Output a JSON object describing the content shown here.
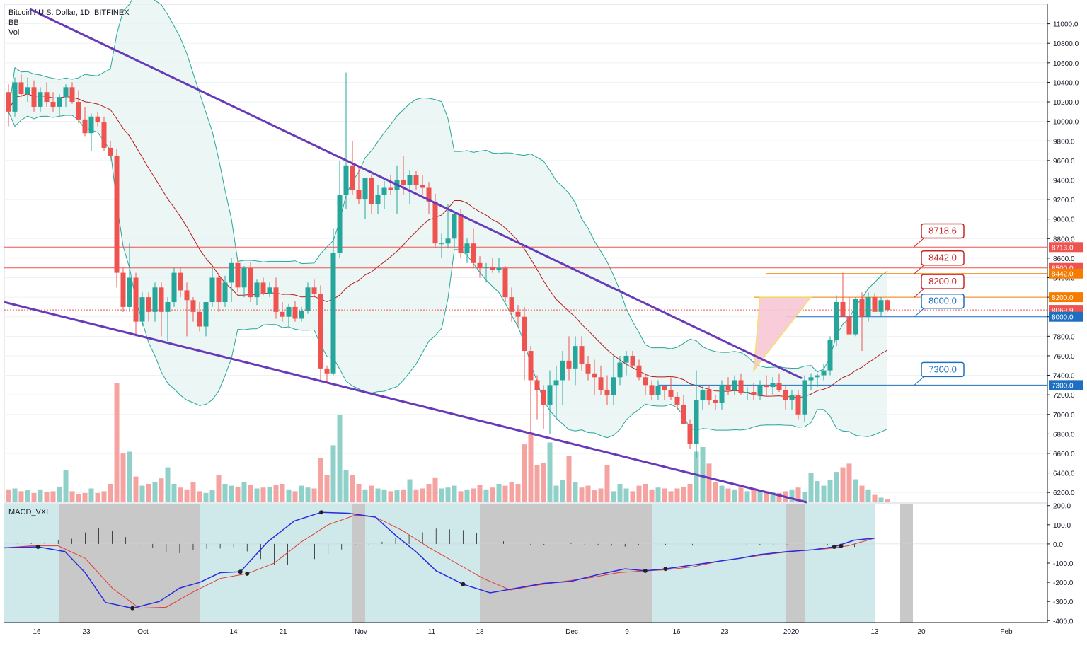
{
  "header": {
    "symbol": "Bitcoin / U.S. Dollar, 1D, BITFINEX",
    "indicator1": "BB",
    "indicator2": "Vol"
  },
  "macd_label": "MACD_VXI",
  "colors": {
    "up": "#26a69a",
    "down": "#ef5350",
    "wedge": "#673ab7",
    "bb": "#2196f3",
    "basis": "#b71c1c",
    "red_line": "#ef5350",
    "orange_line": "#f57c00",
    "blue_line": "#1e6fbf"
  },
  "price_axis": {
    "ticks": [
      "11000.0",
      "10800.0",
      "10600.0",
      "10400.0",
      "10200.0",
      "10000.0",
      "9800.0",
      "9600.0",
      "9400.0",
      "9200.0",
      "9000.0",
      "8800.0",
      "8600.0",
      "8400.0",
      "8200.0",
      "8000.0",
      "7800.0",
      "7600.0",
      "7400.0",
      "7200.0",
      "7000.0",
      "6800.0",
      "6600.0",
      "6400.0",
      "6200.0"
    ],
    "badges": [
      {
        "label": "8713.0",
        "color": "#ef5350",
        "value": 8713
      },
      {
        "label": "8500.0",
        "color": "#ef5350",
        "value": 8500
      },
      {
        "label": "8442.0",
        "color": "#f57c00",
        "value": 8442
      },
      {
        "label": "8200.0",
        "color": "#f57c00",
        "value": 8200
      },
      {
        "label": "8069.9",
        "color": "#ef5350",
        "value": 8069.9
      },
      {
        "label": "8000.0",
        "color": "#1e6fbf",
        "value": 8000
      },
      {
        "label": "7300.0",
        "color": "#1e6fbf",
        "value": 7300
      }
    ]
  },
  "price_labels": [
    {
      "text": "8718.6",
      "color": "#c62828",
      "value": 8718.6
    },
    {
      "text": "8442.0",
      "color": "#c62828",
      "value": 8442
    },
    {
      "text": "8200.0",
      "color": "#c62828",
      "value": 8200
    },
    {
      "text": "8000.0",
      "color": "#1e6fbf",
      "value": 8000
    },
    {
      "text": "7300.0",
      "color": "#1e6fbf",
      "value": 7300
    }
  ],
  "macd_axis": {
    "ticks": [
      "200.0",
      "100.0",
      "0.0",
      "-100.0",
      "-200.0",
      "-300.0",
      "-400.0"
    ]
  },
  "time_axis": {
    "ticks": [
      "16",
      "23",
      "Oct",
      "14",
      "21",
      "Nov",
      "11",
      "18",
      "Dec",
      "9",
      "16",
      "23",
      "2020",
      "13",
      "20",
      "Feb"
    ]
  },
  "chart_data": {
    "type": "candlestick",
    "title": "Bitcoin / U.S. Dollar, 1D, BITFINEX",
    "ylim": [
      6100,
      11200
    ],
    "candles": [
      [
        10300,
        10380,
        9950,
        10100
      ],
      [
        10100,
        10450,
        10050,
        10400
      ],
      [
        10400,
        10480,
        10250,
        10280
      ],
      [
        10280,
        10450,
        10200,
        10350
      ],
      [
        10350,
        10420,
        10100,
        10150
      ],
      [
        10150,
        10350,
        10100,
        10300
      ],
      [
        10300,
        10400,
        10150,
        10200
      ],
      [
        10200,
        10300,
        10100,
        10150
      ],
      [
        10150,
        10280,
        10050,
        10250
      ],
      [
        10250,
        10380,
        10150,
        10350
      ],
      [
        10350,
        10400,
        10180,
        10200
      ],
      [
        10200,
        10320,
        9980,
        10020
      ],
      [
        10020,
        10150,
        9850,
        9880
      ],
      [
        9880,
        10080,
        9700,
        10050
      ],
      [
        10050,
        10100,
        9950,
        9990
      ],
      [
        9990,
        10050,
        9700,
        9730
      ],
      [
        9730,
        9800,
        9600,
        9650
      ],
      [
        9650,
        9720,
        8300,
        8450
      ],
      [
        8450,
        8500,
        8050,
        8100
      ],
      [
        8100,
        8750,
        8050,
        8400
      ],
      [
        8400,
        8450,
        7800,
        7950
      ],
      [
        7950,
        8250,
        7900,
        8200
      ],
      [
        8200,
        8250,
        7950,
        8050
      ],
      [
        8050,
        8350,
        7950,
        8300
      ],
      [
        8300,
        8350,
        7800,
        8050
      ],
      [
        8050,
        8200,
        7750,
        8150
      ],
      [
        8150,
        8500,
        8100,
        8450
      ],
      [
        8450,
        8500,
        8200,
        8270
      ],
      [
        8270,
        8350,
        7800,
        8170
      ],
      [
        8170,
        8200,
        7950,
        8050
      ],
      [
        8050,
        8150,
        7850,
        7900
      ],
      [
        7900,
        8150,
        7800,
        8150
      ],
      [
        8150,
        8500,
        8100,
        8400
      ],
      [
        8400,
        8450,
        8050,
        8150
      ],
      [
        8150,
        8420,
        8100,
        8350
      ],
      [
        8350,
        8600,
        8150,
        8550
      ],
      [
        8550,
        8600,
        8250,
        8300
      ],
      [
        8300,
        8520,
        8200,
        8500
      ],
      [
        8500,
        8560,
        8150,
        8200
      ],
      [
        8200,
        8380,
        8120,
        8350
      ],
      [
        8350,
        8400,
        8220,
        8230
      ],
      [
        8230,
        8350,
        8200,
        8300
      ],
      [
        8300,
        8400,
        7980,
        8050
      ],
      [
        8050,
        8150,
        7950,
        8000
      ],
      [
        8000,
        8130,
        7900,
        8100
      ],
      [
        8100,
        8160,
        7950,
        7980
      ],
      [
        7980,
        8100,
        7950,
        8060
      ],
      [
        8060,
        8350,
        8030,
        8300
      ],
      [
        8300,
        8380,
        8200,
        8230
      ],
      [
        8230,
        8320,
        7350,
        7470
      ],
      [
        7470,
        7500,
        7330,
        7420
      ],
      [
        7420,
        8900,
        7400,
        8650
      ],
      [
        8650,
        9600,
        8600,
        9250
      ],
      [
        9250,
        10500,
        9100,
        9550
      ],
      [
        9550,
        9800,
        9250,
        9300
      ],
      [
        9300,
        9550,
        9150,
        9200
      ],
      [
        9200,
        9420,
        9000,
        9420
      ],
      [
        9420,
        9460,
        9050,
        9150
      ],
      [
        9150,
        9350,
        9050,
        9250
      ],
      [
        9250,
        9390,
        9100,
        9320
      ],
      [
        9320,
        9450,
        9250,
        9300
      ],
      [
        9300,
        9550,
        9050,
        9400
      ],
      [
        9400,
        9650,
        9250,
        9350
      ],
      [
        9350,
        9500,
        9150,
        9450
      ],
      [
        9450,
        9490,
        9300,
        9350
      ],
      [
        9350,
        9450,
        9250,
        9320
      ],
      [
        9320,
        9380,
        9050,
        9180
      ],
      [
        9180,
        9260,
        8700,
        8750
      ],
      [
        8750,
        8850,
        8600,
        8750
      ],
      [
        8750,
        9150,
        8700,
        8800
      ],
      [
        8800,
        9020,
        8700,
        9050
      ],
      [
        9050,
        9100,
        8600,
        8650
      ],
      [
        8650,
        8800,
        8550,
        8750
      ],
      [
        8750,
        8900,
        8500,
        8550
      ],
      [
        8550,
        8620,
        8400,
        8500
      ],
      [
        8500,
        8550,
        8350,
        8510
      ],
      [
        8510,
        8600,
        8450,
        8480
      ],
      [
        8480,
        8600,
        8450,
        8500
      ],
      [
        8500,
        8520,
        8150,
        8200
      ],
      [
        8200,
        8300,
        7950,
        8050
      ],
      [
        8050,
        8120,
        7900,
        8000
      ],
      [
        8000,
        8100,
        7350,
        7650
      ],
      [
        7650,
        7700,
        6800,
        7350
      ],
      [
        7350,
        7400,
        6950,
        7250
      ],
      [
        7250,
        7300,
        6850,
        7100
      ],
      [
        7100,
        7450,
        6800,
        7300
      ],
      [
        7300,
        7500,
        6950,
        7350
      ],
      [
        7350,
        7650,
        7100,
        7550
      ],
      [
        7550,
        7800,
        7350,
        7470
      ],
      [
        7470,
        7800,
        7300,
        7700
      ],
      [
        7700,
        7800,
        7450,
        7520
      ],
      [
        7520,
        7600,
        7350,
        7420
      ],
      [
        7420,
        7560,
        7200,
        7380
      ],
      [
        7380,
        7500,
        7200,
        7250
      ],
      [
        7250,
        7400,
        7100,
        7200
      ],
      [
        7200,
        7600,
        7100,
        7380
      ],
      [
        7380,
        7600,
        7300,
        7530
      ],
      [
        7530,
        7650,
        7400,
        7600
      ],
      [
        7600,
        7650,
        7480,
        7500
      ],
      [
        7500,
        7560,
        7350,
        7380
      ],
      [
        7380,
        7420,
        7200,
        7300
      ],
      [
        7300,
        7350,
        7150,
        7200
      ],
      [
        7200,
        7350,
        7150,
        7290
      ],
      [
        7290,
        7300,
        7150,
        7250
      ],
      [
        7250,
        7380,
        7150,
        7180
      ],
      [
        7180,
        7230,
        7050,
        7100
      ],
      [
        7100,
        7200,
        6950,
        6900
      ],
      [
        6900,
        6950,
        6650,
        6700
      ],
      [
        6700,
        7450,
        6550,
        7150
      ],
      [
        7150,
        7300,
        7050,
        7250
      ],
      [
        7250,
        7300,
        7100,
        7150
      ],
      [
        7150,
        7200,
        7050,
        7120
      ],
      [
        7120,
        7350,
        7050,
        7300
      ],
      [
        7300,
        7380,
        7200,
        7250
      ],
      [
        7250,
        7400,
        7200,
        7350
      ],
      [
        7350,
        7420,
        7200,
        7220
      ],
      [
        7220,
        7280,
        7150,
        7230
      ],
      [
        7230,
        7320,
        7150,
        7200
      ],
      [
        7200,
        7350,
        7150,
        7300
      ],
      [
        7300,
        7400,
        7200,
        7280
      ],
      [
        7280,
        7380,
        7200,
        7320
      ],
      [
        7320,
        7420,
        7230,
        7250
      ],
      [
        7250,
        7300,
        7050,
        7150
      ],
      [
        7150,
        7250,
        7050,
        7200
      ],
      [
        7200,
        7250,
        6950,
        7000
      ],
      [
        7000,
        7400,
        6920,
        7350
      ],
      [
        7350,
        7420,
        7250,
        7380
      ],
      [
        7380,
        7420,
        7280,
        7400
      ],
      [
        7400,
        7520,
        7350,
        7450
      ],
      [
        7450,
        7800,
        7400,
        7760
      ],
      [
        7760,
        8220,
        7700,
        8150
      ],
      [
        8150,
        8450,
        8050,
        8000
      ],
      [
        8000,
        8200,
        7850,
        7820
      ],
      [
        7820,
        8200,
        7800,
        8180
      ],
      [
        8180,
        8250,
        7650,
        8000
      ],
      [
        8000,
        8250,
        7950,
        8200
      ],
      [
        8200,
        8240,
        8080,
        8050
      ],
      [
        8050,
        8200,
        8000,
        8170
      ],
      [
        8170,
        8180,
        8050,
        8070
      ]
    ],
    "volumes": [
      0.14,
      0.15,
      0.12,
      0.13,
      0.1,
      0.14,
      0.11,
      0.12,
      0.17,
      0.35,
      0.12,
      0.09,
      0.1,
      0.15,
      0.1,
      0.12,
      0.2,
      1.3,
      0.53,
      0.55,
      0.28,
      0.18,
      0.2,
      0.22,
      0.26,
      0.38,
      0.2,
      0.16,
      0.14,
      0.22,
      0.12,
      0.1,
      0.13,
      0.3,
      0.2,
      0.18,
      0.17,
      0.22,
      0.19,
      0.15,
      0.16,
      0.17,
      0.19,
      0.2,
      0.14,
      0.12,
      0.18,
      0.16,
      0.15,
      0.48,
      0.3,
      0.62,
      0.95,
      0.35,
      0.3,
      0.2,
      0.14,
      0.18,
      0.15,
      0.14,
      0.12,
      0.13,
      0.14,
      0.25,
      0.14,
      0.15,
      0.2,
      0.27,
      0.15,
      0.16,
      0.18,
      0.12,
      0.14,
      0.15,
      0.19,
      0.14,
      0.16,
      0.2,
      0.18,
      0.22,
      0.2,
      0.63,
      0.76,
      0.4,
      0.43,
      0.65,
      0.18,
      0.24,
      0.5,
      0.22,
      0.16,
      0.18,
      0.13,
      0.15,
      0.4,
      0.12,
      0.2,
      0.15,
      0.12,
      0.18,
      0.2,
      0.14,
      0.16,
      0.15,
      0.12,
      0.15,
      0.17,
      0.2,
      0.55,
      0.6,
      0.42,
      0.22,
      0.18,
      0.15,
      0.14,
      0.16,
      0.12,
      0.15,
      0.13,
      0.12,
      0.11,
      0.1,
      0.12,
      0.14,
      0.16,
      0.11,
      0.32,
      0.23,
      0.18,
      0.24,
      0.33,
      0.38,
      0.42,
      0.25,
      0.18,
      0.14,
      0.08,
      0.05,
      0.03
    ],
    "volume_colors_follow_candles": true,
    "wedge": {
      "upper": [
        [
          0,
          11150
        ],
        [
          119,
          7370
        ]
      ],
      "lower": [
        [
          0,
          8150
        ],
        [
          112,
          6100
        ]
      ]
    },
    "hlines": [
      {
        "value": 8713,
        "color": "#ef5350"
      },
      {
        "value": 8500,
        "color": "#ef5350"
      },
      {
        "value": 8442,
        "color": "#f57c00",
        "from": 119
      },
      {
        "value": 8200,
        "color": "#f57c00",
        "from": 117
      },
      {
        "value": 8069.9,
        "color": "#ef5350",
        "dotted": true
      },
      {
        "value": 8000,
        "color": "#1e6fbf",
        "from": 122
      },
      {
        "value": 7300,
        "color": "#1e6fbf",
        "from": 102
      }
    ],
    "triangle": [
      [
        117,
        7450
      ],
      [
        118,
        8200
      ],
      [
        126,
        8200
      ]
    ],
    "macd": {
      "ylim": [
        -410,
        210
      ],
      "macd_line": [
        [
          0,
          -20
        ],
        [
          10,
          -15
        ],
        [
          18,
          -40
        ],
        [
          24,
          -150
        ],
        [
          30,
          -305
        ],
        [
          38,
          -335
        ],
        [
          46,
          -300
        ],
        [
          52,
          -230
        ],
        [
          58,
          -200
        ],
        [
          64,
          -150
        ],
        [
          70,
          -145
        ],
        [
          78,
          10
        ],
        [
          86,
          120
        ],
        [
          94,
          165
        ],
        [
          102,
          160
        ],
        [
          110,
          140
        ],
        [
          116,
          45
        ],
        [
          122,
          -40
        ],
        [
          128,
          -140
        ],
        [
          136,
          -210
        ],
        [
          144,
          -255
        ],
        [
          152,
          -230
        ],
        [
          160,
          -205
        ],
        [
          168,
          -195
        ],
        [
          176,
          -160
        ],
        [
          184,
          -130
        ],
        [
          190,
          -140
        ],
        [
          196,
          -130
        ],
        [
          204,
          -110
        ],
        [
          212,
          -90
        ],
        [
          218,
          -75
        ],
        [
          224,
          -55
        ],
        [
          232,
          -40
        ],
        [
          240,
          -30
        ],
        [
          246,
          -15
        ],
        [
          252,
          20
        ],
        [
          258,
          30
        ]
      ],
      "signal_line": [
        [
          0,
          -20
        ],
        [
          8,
          -10
        ],
        [
          16,
          -10
        ],
        [
          24,
          -75
        ],
        [
          32,
          -230
        ],
        [
          40,
          -335
        ],
        [
          48,
          -330
        ],
        [
          56,
          -250
        ],
        [
          64,
          -180
        ],
        [
          72,
          -155
        ],
        [
          80,
          -100
        ],
        [
          88,
          10
        ],
        [
          96,
          100
        ],
        [
          104,
          150
        ],
        [
          110,
          140
        ],
        [
          118,
          70
        ],
        [
          126,
          -20
        ],
        [
          134,
          -100
        ],
        [
          142,
          -180
        ],
        [
          150,
          -240
        ],
        [
          158,
          -215
        ],
        [
          166,
          -195
        ],
        [
          174,
          -175
        ],
        [
          182,
          -150
        ],
        [
          190,
          -140
        ],
        [
          196,
          -135
        ],
        [
          204,
          -120
        ],
        [
          212,
          -90
        ],
        [
          220,
          -70
        ],
        [
          228,
          -50
        ],
        [
          236,
          -35
        ],
        [
          244,
          -25
        ],
        [
          250,
          -10
        ],
        [
          258,
          30
        ]
      ],
      "histogram_sign_pattern": "from-candles",
      "shaded_regions": [
        [
          8,
          30
        ],
        [
          54,
          56
        ],
        [
          74,
          101
        ],
        [
          122,
          125
        ],
        [
          140,
          142
        ]
      ]
    }
  }
}
